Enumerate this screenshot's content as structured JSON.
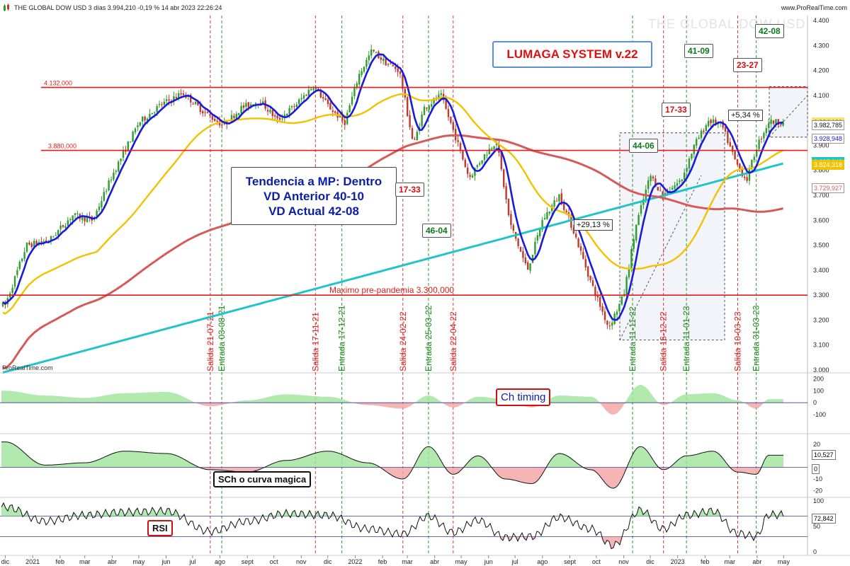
{
  "header": {
    "title": "THE GLOBAL DOW USD 3 días 3.994,210 -0,19 % 14 abr 2023 22:26:24",
    "source": "www.ProRealTime.com",
    "watermark": "THE GLOBAL DOW USD",
    "brand": "ProRealTime.com"
  },
  "annotations": {
    "lumaga": "LUMAGA SYSTEM v.22",
    "trend_line1": "Tendencia a MP: Dentro",
    "trend_line2": "VD Anterior 40-10",
    "trend_line3": "VD Actual  42-08",
    "pct1": "+29,13 %",
    "pct2": "+5,34 %",
    "ch_timing": "Ch timing",
    "sch": "SCh o curva magica",
    "rsi": "RSI"
  },
  "cycle_labels": [
    {
      "text": "17-33",
      "color": "red"
    },
    {
      "text": "46-04",
      "color": "green"
    },
    {
      "text": "44-06",
      "color": "green"
    },
    {
      "text": "17-33",
      "color": "red"
    },
    {
      "text": "41-09",
      "color": "green"
    },
    {
      "text": "23-27",
      "color": "red"
    },
    {
      "text": "42-08",
      "color": "green"
    }
  ],
  "colors": {
    "up": "#2e9e2e",
    "down": "#c0392b",
    "blue_line": "#1a1adb",
    "ma_yellow": "#f2c200",
    "ma_red": "#d65a5a",
    "ma_cyan": "#21c4c8",
    "hline": "#e01c1c",
    "vline_red": "#e02020",
    "vline_green": "#1a8a1a"
  },
  "chart_data": [
    {
      "type": "candlestick",
      "title": "THE GLOBAL DOW USD",
      "timeframe": "3 días",
      "x_ticks": [
        "dic",
        "2021",
        "feb",
        "mar",
        "abr",
        "may",
        "jun",
        "jul",
        "ago",
        "sept",
        "oct",
        "nov",
        "dic",
        "2022",
        "feb",
        "mar",
        "abr",
        "may",
        "jun",
        "jul",
        "ago",
        "sept",
        "oct",
        "nov",
        "dic",
        "2023",
        "feb",
        "mar",
        "abr",
        "may"
      ],
      "y_ticks": [
        "4.400",
        "4.300",
        "4.200",
        "4.100",
        "3.900",
        "3.800",
        "3.700",
        "3.600",
        "3.500",
        "3.400",
        "3.300",
        "3.200",
        "3.100",
        "3.000"
      ],
      "ylim": [
        3000,
        4420
      ],
      "price_path": [
        [
          "2020-12-01",
          3260
        ],
        [
          "2020-12-25",
          3500
        ],
        [
          "2021-01-20",
          3520
        ],
        [
          "2021-02-15",
          3620
        ],
        [
          "2021-03-10",
          3600
        ],
        [
          "2021-04-01",
          3780
        ],
        [
          "2021-05-01",
          3990
        ],
        [
          "2021-05-25",
          4060
        ],
        [
          "2021-06-20",
          4110
        ],
        [
          "2021-07-15",
          4030
        ],
        [
          "2021-08-05",
          3980
        ],
        [
          "2021-08-25",
          4050
        ],
        [
          "2021-09-15",
          4080
        ],
        [
          "2021-10-05",
          4000
        ],
        [
          "2021-10-25",
          4060
        ],
        [
          "2021-11-15",
          4140
        ],
        [
          "2021-12-01",
          4060
        ],
        [
          "2021-12-20",
          3990
        ],
        [
          "2022-01-05",
          4180
        ],
        [
          "2022-01-20",
          4280
        ],
        [
          "2022-02-05",
          4230
        ],
        [
          "2022-02-20",
          4200
        ],
        [
          "2022-03-08",
          3900
        ],
        [
          "2022-03-20",
          4050
        ],
        [
          "2022-04-08",
          4100
        ],
        [
          "2022-04-25",
          3930
        ],
        [
          "2022-05-10",
          3770
        ],
        [
          "2022-05-25",
          3850
        ],
        [
          "2022-06-10",
          3920
        ],
        [
          "2022-06-25",
          3590
        ],
        [
          "2022-07-15",
          3400
        ],
        [
          "2022-08-01",
          3600
        ],
        [
          "2022-08-20",
          3700
        ],
        [
          "2022-09-05",
          3560
        ],
        [
          "2022-09-25",
          3350
        ],
        [
          "2022-10-15",
          3170
        ],
        [
          "2022-11-01",
          3300
        ],
        [
          "2022-11-15",
          3580
        ],
        [
          "2022-12-01",
          3780
        ],
        [
          "2022-12-15",
          3700
        ],
        [
          "2023-01-05",
          3760
        ],
        [
          "2023-01-20",
          3900
        ],
        [
          "2023-02-05",
          4000
        ],
        [
          "2023-02-20",
          3980
        ],
        [
          "2023-03-08",
          3830
        ],
        [
          "2023-03-20",
          3760
        ],
        [
          "2023-04-01",
          3900
        ],
        [
          "2023-04-14",
          3994
        ]
      ],
      "last_price": 3994.21,
      "change_pct": -0.19,
      "price_labels": [
        {
          "text": "3.994,180",
          "value": 3994.18,
          "bg": "#f5e26a",
          "fg": "#111"
        },
        {
          "text": "3.982,785",
          "value": 3982.785,
          "bg": "#ffffff",
          "fg": "#111"
        },
        {
          "text": "3.928,948",
          "value": 3928.948,
          "bg": "#ffffff",
          "fg": "#1a1adb"
        },
        {
          "text": "3.835,943",
          "value": 3835.943,
          "bg": "#21c4c8",
          "fg": "#ffffff"
        },
        {
          "text": "3.824,318",
          "value": 3824.318,
          "bg": "#f2c200",
          "fg": "#ffffff"
        },
        {
          "text": "3.729,927",
          "value": 3729.927,
          "bg": "#ffffff",
          "fg": "#d65a5a"
        }
      ],
      "horizontal_lines": [
        {
          "value": 4132,
          "label": "4.132,000"
        },
        {
          "value": 3880,
          "label": "3.880,000"
        },
        {
          "value": 3300,
          "label": "Maximo pre-pandemia  3.300,000"
        }
      ],
      "signals": [
        {
          "date": "2021-07-21",
          "label": "Salida 21-07-21",
          "type": "salida"
        },
        {
          "date": "2021-08-03",
          "label": "Entrada 03-08-21",
          "type": "entrada"
        },
        {
          "date": "2021-11-17",
          "label": "Salida 17-11-21",
          "type": "salida"
        },
        {
          "date": "2021-12-17",
          "label": "Entrada 17-12-21",
          "type": "entrada"
        },
        {
          "date": "2022-02-24",
          "label": "Salida 24-02-22",
          "type": "salida"
        },
        {
          "date": "2022-03-25",
          "label": "Entrada 25-03-22",
          "type": "entrada"
        },
        {
          "date": "2022-04-22",
          "label": "Salida 22-04-22",
          "type": "salida"
        },
        {
          "date": "2022-11-11",
          "label": "Entrada 11-11-22",
          "type": "entrada"
        },
        {
          "date": "2022-12-16",
          "label": "Salida 16-12-22",
          "type": "salida"
        },
        {
          "date": "2023-01-11",
          "label": "Entrada 11-01-23",
          "type": "entrada"
        },
        {
          "date": "2023-03-10",
          "label": "Salida 10-03-23",
          "type": "salida"
        },
        {
          "date": "2023-03-31",
          "label": "Entrada 31-03-23",
          "type": "entrada"
        }
      ]
    },
    {
      "type": "area",
      "ylim": [
        -200,
        220
      ],
      "y_ticks": [
        "200",
        "100",
        "0",
        "-100"
      ],
      "x": [
        "2020-12-01",
        "2021-01-15",
        "2021-03-01",
        "2021-04-15",
        "2021-06-01",
        "2021-07-21",
        "2021-09-01",
        "2021-10-15",
        "2021-12-01",
        "2022-01-15",
        "2022-02-24",
        "2022-03-25",
        "2022-04-22",
        "2022-05-20",
        "2022-06-20",
        "2022-07-20",
        "2022-08-20",
        "2022-09-25",
        "2022-10-20",
        "2022-11-20",
        "2022-12-16",
        "2023-01-11",
        "2023-02-10",
        "2023-03-10",
        "2023-03-31",
        "2023-04-14"
      ],
      "values": [
        100,
        60,
        40,
        80,
        90,
        -30,
        20,
        70,
        50,
        -20,
        -50,
        60,
        -40,
        50,
        30,
        -40,
        60,
        50,
        -100,
        150,
        -20,
        70,
        80,
        20,
        -50,
        30
      ]
    },
    {
      "type": "area",
      "ylim": [
        -24,
        26
      ],
      "y_ticks": [
        "20",
        "10",
        "0",
        "-10",
        "-20"
      ],
      "x": [
        "2020-12-01",
        "2021-01-15",
        "2021-03-01",
        "2021-04-15",
        "2021-06-01",
        "2021-07-21",
        "2021-09-01",
        "2021-10-15",
        "2021-12-01",
        "2022-01-15",
        "2022-02-24",
        "2022-03-25",
        "2022-04-22",
        "2022-05-20",
        "2022-06-20",
        "2022-07-20",
        "2022-08-20",
        "2022-09-25",
        "2022-10-20",
        "2022-11-20",
        "2022-12-16",
        "2023-01-11",
        "2023-02-10",
        "2023-03-10",
        "2023-03-31",
        "2023-04-14"
      ],
      "values": [
        22,
        2,
        4,
        14,
        12,
        -2,
        -4,
        6,
        14,
        4,
        -10,
        18,
        -6,
        10,
        -10,
        -14,
        12,
        -2,
        -18,
        18,
        -2,
        10,
        14,
        -4,
        -6,
        10.527
      ],
      "last_label": "10,527",
      "zero_label": "0"
    },
    {
      "type": "line",
      "ylim": [
        0,
        100
      ],
      "y_ticks": [
        "100",
        "50",
        "0"
      ],
      "levels": [
        70,
        30
      ],
      "x": [
        "2020-12-01",
        "2021-01-15",
        "2021-03-01",
        "2021-04-15",
        "2021-06-01",
        "2021-07-21",
        "2021-09-01",
        "2021-10-15",
        "2021-12-01",
        "2022-01-15",
        "2022-02-24",
        "2022-03-25",
        "2022-04-22",
        "2022-05-20",
        "2022-06-20",
        "2022-07-20",
        "2022-08-20",
        "2022-09-25",
        "2022-10-20",
        "2022-11-20",
        "2022-12-16",
        "2023-01-11",
        "2023-02-10",
        "2023-03-10",
        "2023-03-31",
        "2023-04-14"
      ],
      "values": [
        88,
        60,
        72,
        78,
        80,
        40,
        60,
        75,
        72,
        45,
        35,
        70,
        38,
        62,
        28,
        30,
        68,
        45,
        12,
        82,
        45,
        72,
        80,
        36,
        30,
        72.842
      ],
      "last_label": "72,842"
    }
  ]
}
